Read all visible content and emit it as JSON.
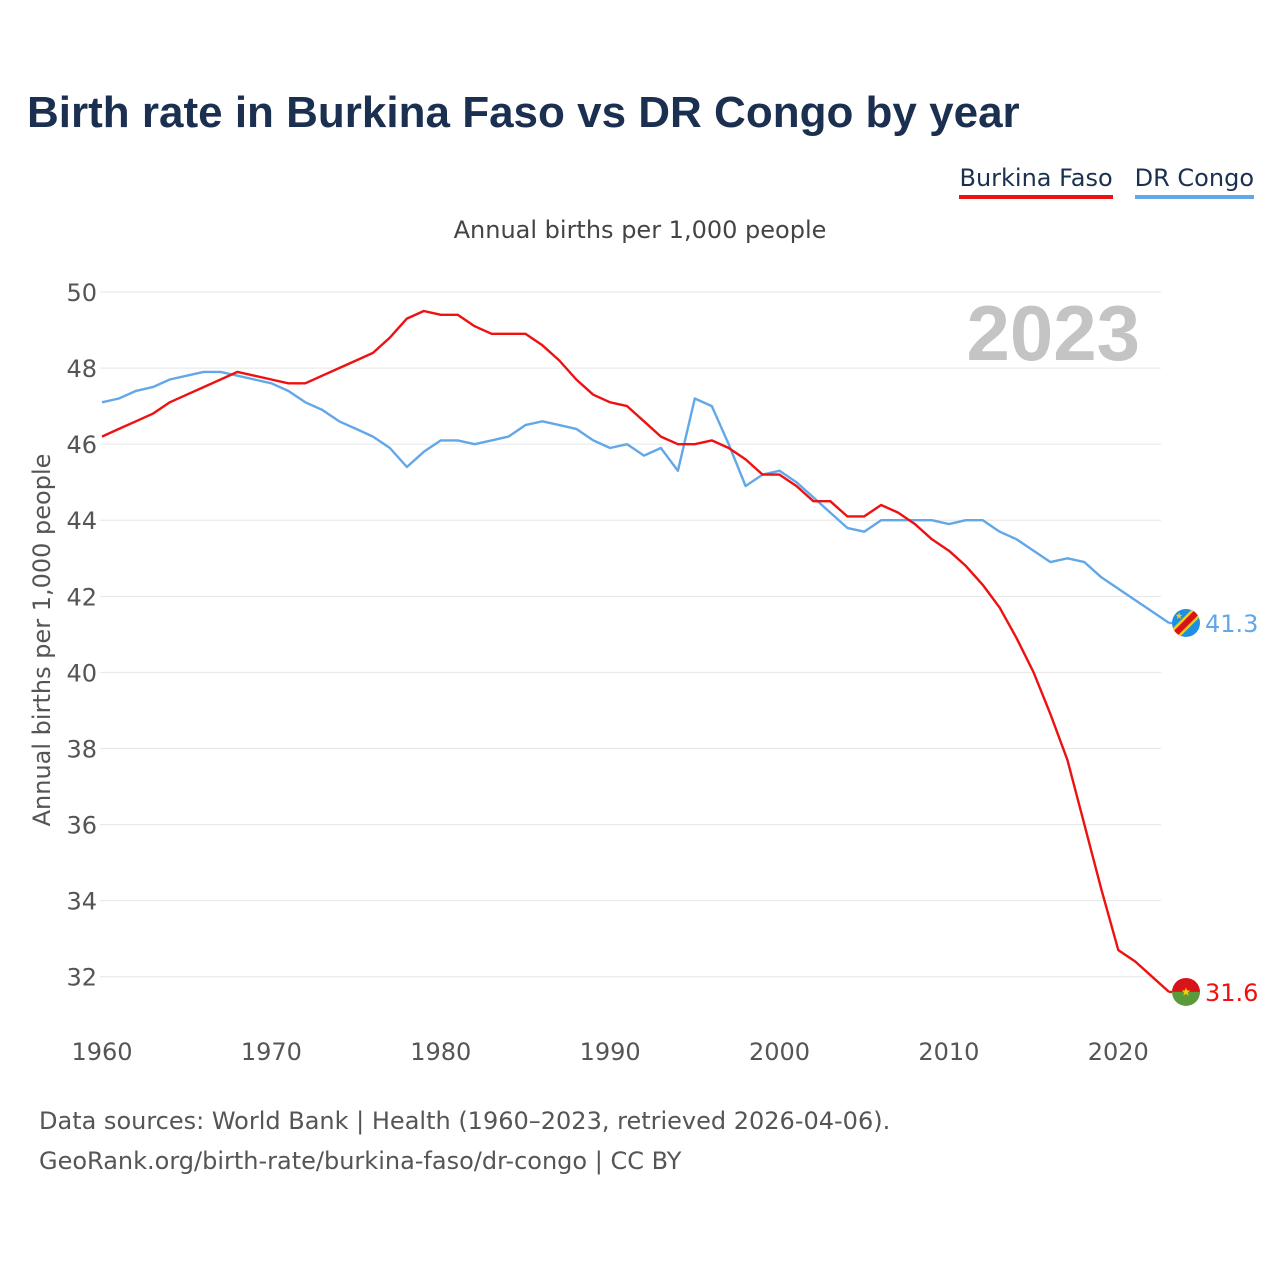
{
  "header": {
    "title": "Birth rate in Burkina Faso vs DR Congo by year",
    "subtitle": "Annual births per 1,000 people"
  },
  "legend": [
    {
      "label": "Burkina Faso",
      "color": "#ee1111"
    },
    {
      "label": "DR Congo",
      "color": "#62a8e8"
    }
  ],
  "footer": {
    "line1": "Data sources: World Bank | Health (1960–2023, retrieved 2026-04-06).",
    "line2": "GeoRank.org/birth-rate/burkina-faso/dr-congo | CC BY"
  },
  "chart_data": {
    "type": "line",
    "title": "Birth rate in Burkina Faso vs DR Congo by year",
    "subtitle": "Annual births per 1,000 people",
    "xlabel": "",
    "ylabel": "Annual births per 1,000 people",
    "xlim": [
      1960,
      2024
    ],
    "ylim": [
      30.6,
      50
    ],
    "xticks": [
      1960,
      1970,
      1980,
      1990,
      2000,
      2010,
      2020
    ],
    "yticks": [
      32,
      34,
      36,
      38,
      40,
      42,
      44,
      46,
      48,
      50
    ],
    "grid": "horizontal",
    "legend_position": "top-right",
    "year_label": "2023",
    "x": [
      1960,
      1961,
      1962,
      1963,
      1964,
      1965,
      1966,
      1967,
      1968,
      1969,
      1970,
      1971,
      1972,
      1973,
      1974,
      1975,
      1976,
      1977,
      1978,
      1979,
      1980,
      1981,
      1982,
      1983,
      1984,
      1985,
      1986,
      1987,
      1988,
      1989,
      1990,
      1991,
      1992,
      1993,
      1994,
      1995,
      1996,
      1997,
      1998,
      1999,
      2000,
      2001,
      2002,
      2003,
      2004,
      2005,
      2006,
      2007,
      2008,
      2009,
      2010,
      2011,
      2012,
      2013,
      2014,
      2015,
      2016,
      2017,
      2018,
      2019,
      2020,
      2021,
      2022,
      2023
    ],
    "series": [
      {
        "name": "Burkina Faso",
        "color": "#ee1111",
        "end_label": "31.6",
        "flag": "burkina-faso-flag-icon",
        "values": [
          46.2,
          46.4,
          46.6,
          46.8,
          47.1,
          47.3,
          47.5,
          47.7,
          47.9,
          47.8,
          47.7,
          47.6,
          47.6,
          47.8,
          48.0,
          48.2,
          48.4,
          48.8,
          49.3,
          49.5,
          49.4,
          49.4,
          49.1,
          48.9,
          48.9,
          48.9,
          48.6,
          48.2,
          47.7,
          47.3,
          47.1,
          47.0,
          46.6,
          46.2,
          46.0,
          46.0,
          46.1,
          45.9,
          45.6,
          45.2,
          45.2,
          44.9,
          44.5,
          44.5,
          44.1,
          44.1,
          44.4,
          44.2,
          43.9,
          43.5,
          43.2,
          42.8,
          42.3,
          41.7,
          40.9,
          40.0,
          38.9,
          37.7,
          36.0,
          34.3,
          32.7,
          32.4,
          32.0,
          31.6
        ]
      },
      {
        "name": "DR Congo",
        "color": "#62a8e8",
        "end_label": "41.3",
        "flag": "dr-congo-flag-icon",
        "values": [
          47.1,
          47.2,
          47.4,
          47.5,
          47.7,
          47.8,
          47.9,
          47.9,
          47.8,
          47.7,
          47.6,
          47.4,
          47.1,
          46.9,
          46.6,
          46.4,
          46.2,
          45.9,
          45.4,
          45.8,
          46.1,
          46.1,
          46.0,
          46.1,
          46.2,
          46.5,
          46.6,
          46.5,
          46.4,
          46.1,
          45.9,
          46.0,
          45.7,
          45.9,
          45.3,
          47.2,
          47.0,
          46.0,
          44.9,
          45.2,
          45.3,
          45.0,
          44.6,
          44.2,
          43.8,
          43.7,
          44.0,
          44.0,
          44.0,
          44.0,
          43.9,
          44.0,
          44.0,
          43.7,
          43.5,
          43.2,
          42.9,
          43.0,
          42.9,
          42.5,
          42.2,
          41.9,
          41.6,
          41.3
        ]
      }
    ]
  }
}
